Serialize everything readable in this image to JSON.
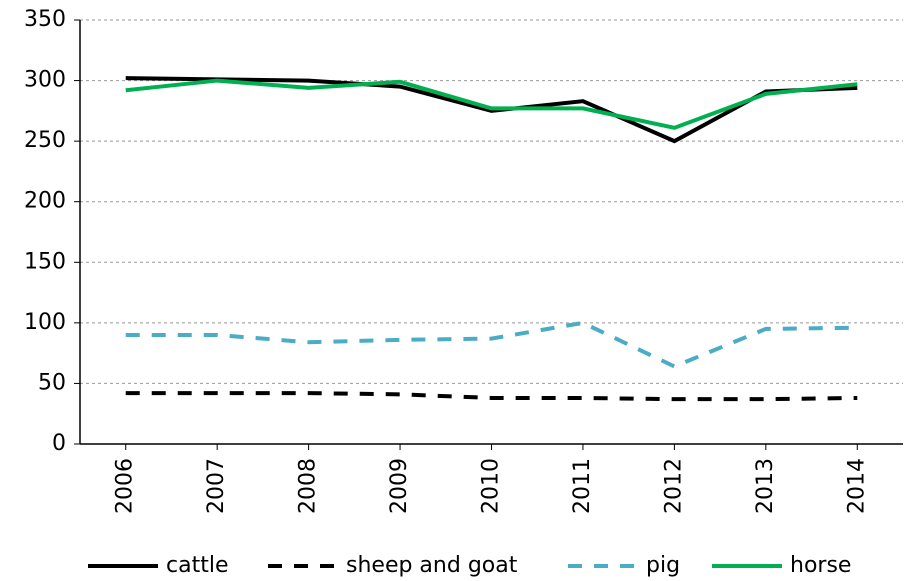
{
  "chart_data": {
    "type": "line",
    "categories": [
      "2006",
      "2007",
      "2008",
      "2009",
      "2010",
      "2011",
      "2012",
      "2013",
      "2014"
    ],
    "series": [
      {
        "name": "cattle",
        "color": "#000000",
        "dashed": false,
        "values": [
          302,
          301,
          300,
          295,
          275,
          283,
          250,
          291,
          294
        ]
      },
      {
        "name": "sheep and goat",
        "color": "#000000",
        "dashed": true,
        "values": [
          42,
          42,
          42,
          41,
          38,
          38,
          37,
          37,
          38
        ]
      },
      {
        "name": "pig",
        "color": "#4bacc6",
        "dashed": true,
        "values": [
          90,
          90,
          84,
          86,
          87,
          100,
          64,
          95,
          96
        ]
      },
      {
        "name": "horse",
        "color": "#00b050",
        "dashed": false,
        "values": [
          292,
          300,
          294,
          299,
          277,
          277,
          261,
          289,
          297
        ]
      }
    ],
    "ylim": [
      0,
      350
    ],
    "yticks": [
      0,
      50,
      100,
      150,
      200,
      250,
      300,
      350
    ],
    "grid": true,
    "legend": "bottom"
  }
}
